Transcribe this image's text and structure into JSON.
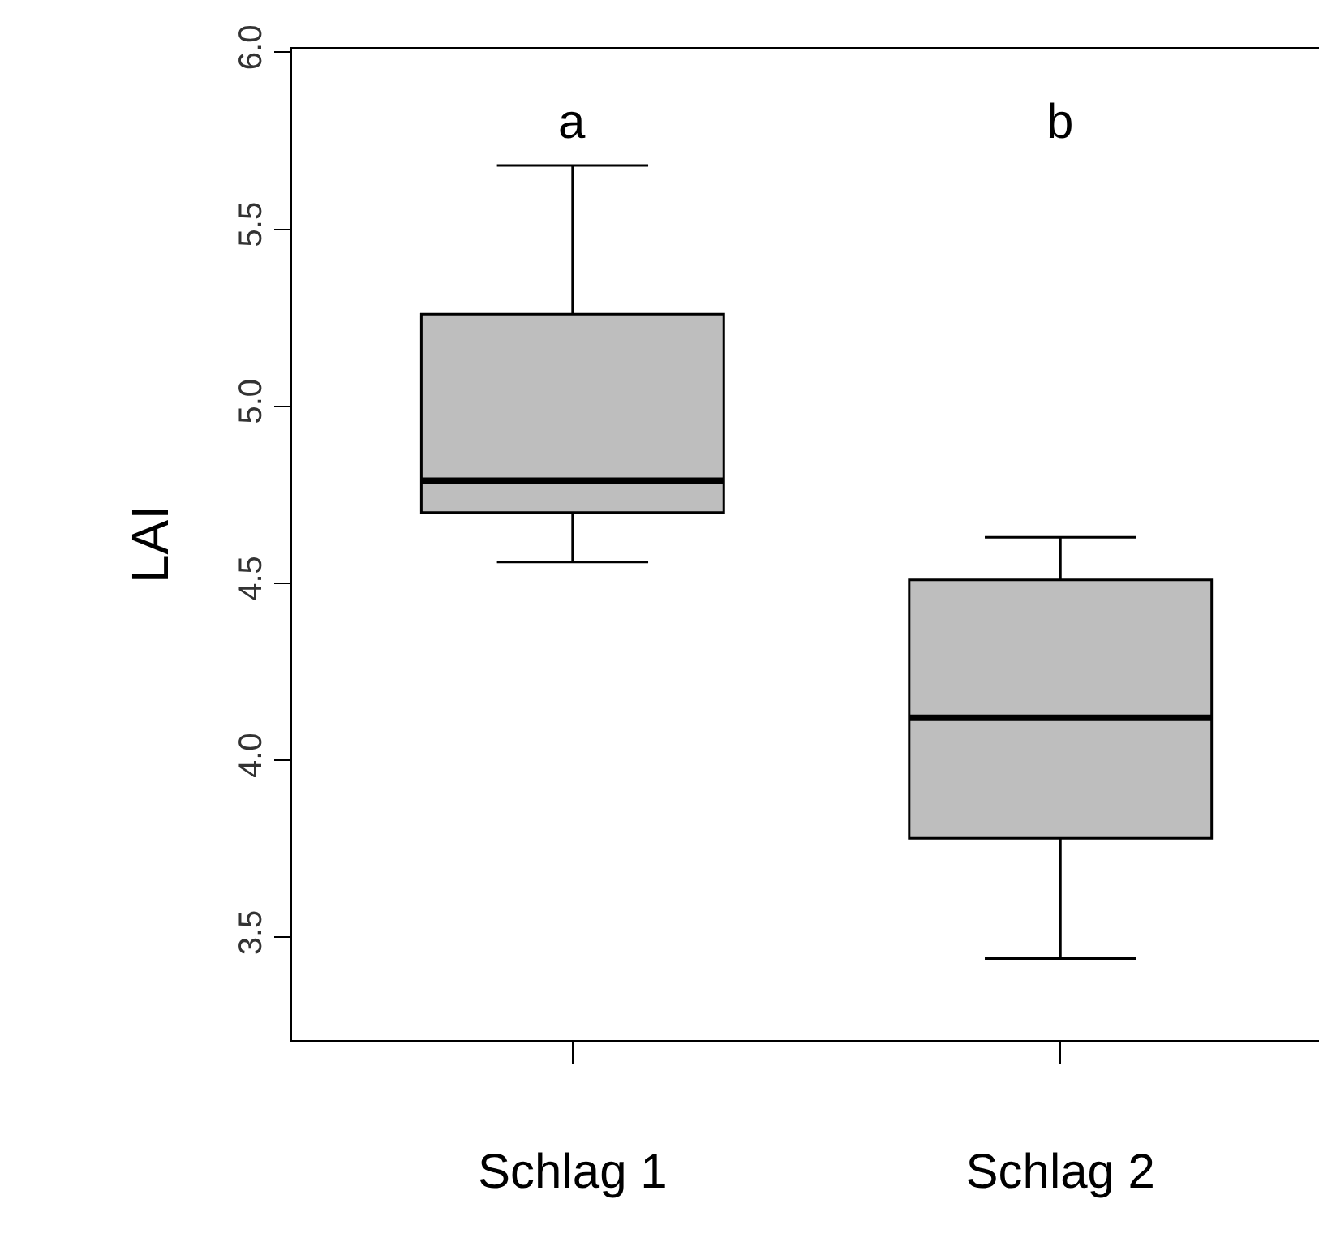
{
  "chart_data": {
    "type": "box",
    "ylabel": "LAI",
    "categories": [
      "Schlag 1",
      "Schlag 2"
    ],
    "boxes": [
      {
        "low": 4.56,
        "q1": 4.7,
        "median": 4.79,
        "q3": 5.26,
        "high": 5.68
      },
      {
        "low": 3.44,
        "q1": 3.78,
        "median": 4.12,
        "q3": 4.51,
        "high": 4.63
      }
    ],
    "color": "#bebebe",
    "ylim": [
      3.21,
      6.01
    ],
    "yticks": [
      {
        "value": 3.5,
        "label": "3.5"
      },
      {
        "value": 4,
        "label": "4.0"
      },
      {
        "value": 4.5,
        "label": "4.5"
      },
      {
        "value": 5,
        "label": "5.0"
      },
      {
        "value": 5.5,
        "label": "5.5"
      },
      {
        "value": 6,
        "label": "6.0"
      }
    ],
    "annotations": [
      "a",
      "b"
    ],
    "grid": false
  }
}
